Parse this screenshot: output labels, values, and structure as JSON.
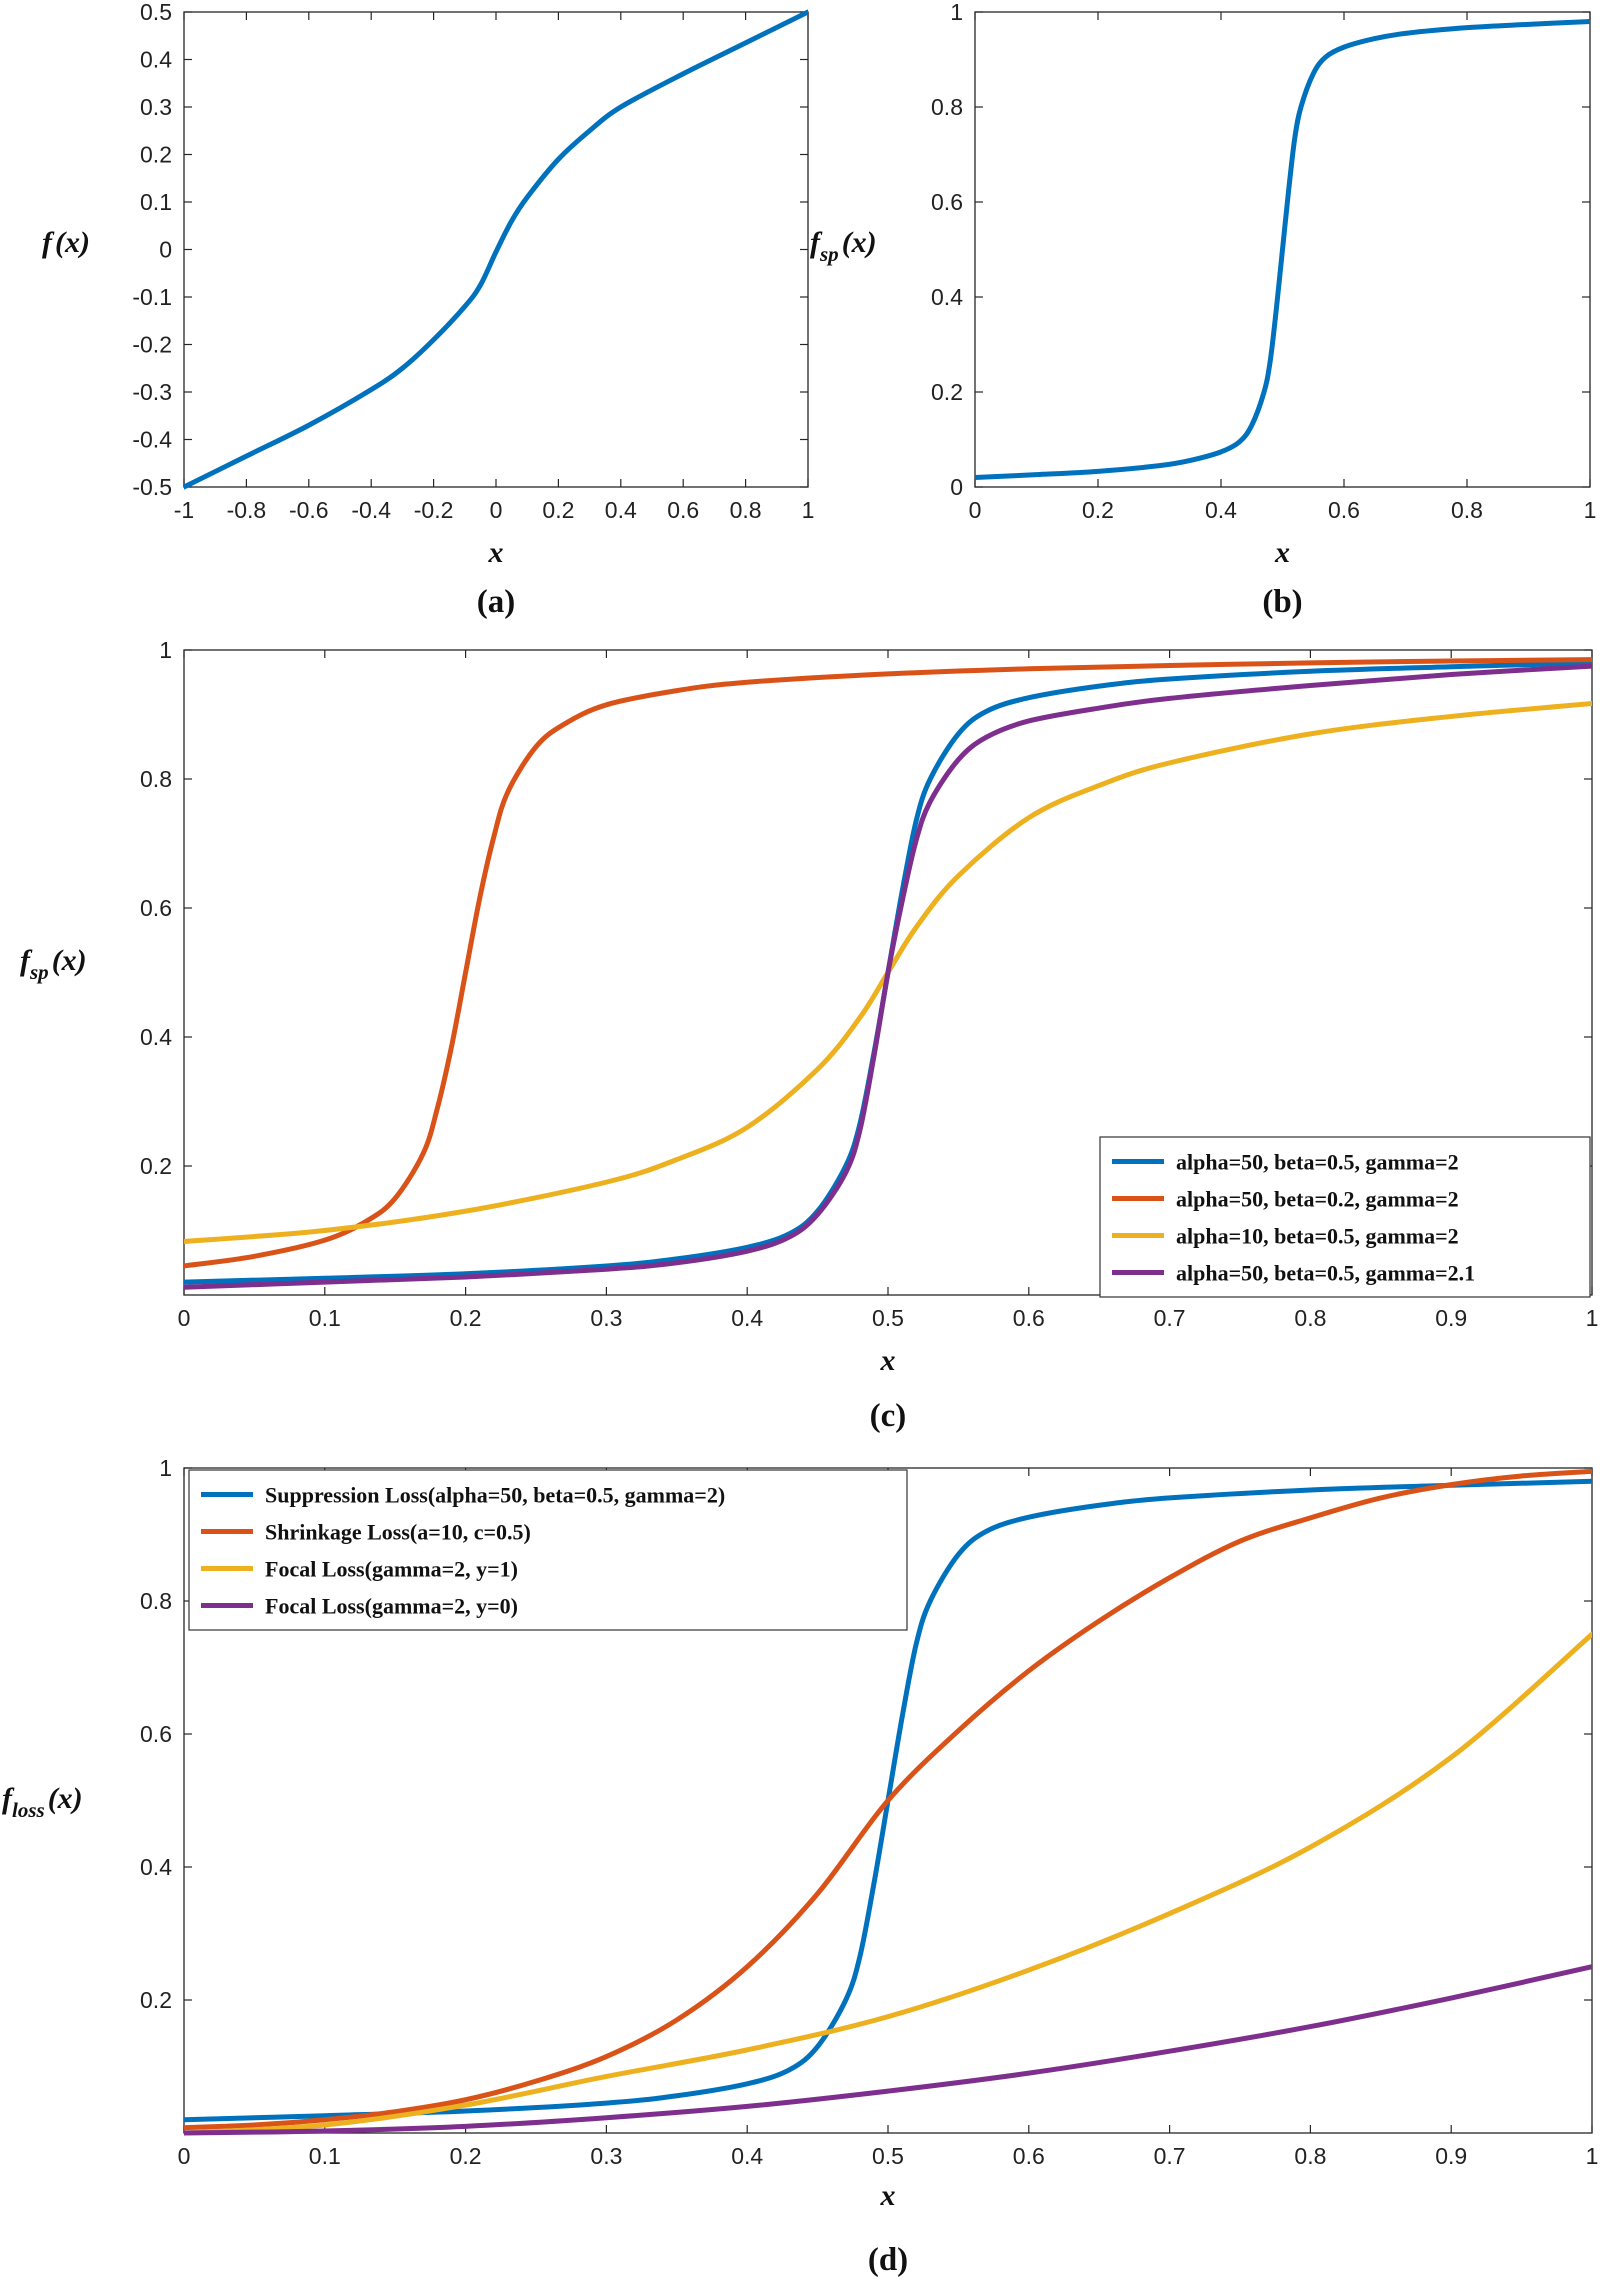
{
  "chart_data": [
    {
      "id": "a",
      "type": "line",
      "caption": "(a)",
      "xlabel": "x",
      "ylabel": {
        "main": "f",
        "sub": "",
        "tail": "(x)"
      },
      "xlim": [
        -1,
        1
      ],
      "ylim": [
        -0.5,
        0.5
      ],
      "xticks": [
        -1,
        -0.8,
        -0.6,
        -0.4,
        -0.2,
        0,
        0.2,
        0.4,
        0.6,
        0.8,
        1
      ],
      "xtick_labels": [
        "-1",
        "-0.8",
        "-0.6",
        "-0.4",
        "-0.2",
        "0",
        "0.2",
        "0.4",
        "0.6",
        "0.8",
        "1"
      ],
      "yticks": [
        -0.5,
        -0.4,
        -0.3,
        -0.2,
        -0.1,
        0,
        0.1,
        0.2,
        0.3,
        0.4,
        0.5
      ],
      "ytick_labels": [
        "-0.5",
        "-0.4",
        "-0.3",
        "-0.2",
        "-0.1",
        "0",
        "0.1",
        "0.2",
        "0.3",
        "0.4",
        "0.5"
      ],
      "series": [
        {
          "name": "f(x)",
          "color": "#0072BD",
          "x": [
            -1,
            -0.8,
            -0.6,
            -0.4,
            -0.3,
            -0.2,
            -0.1,
            -0.05,
            0,
            0.05,
            0.1,
            0.2,
            0.3,
            0.4,
            0.6,
            0.8,
            1
          ],
          "y": [
            -0.5,
            -0.435,
            -0.37,
            -0.295,
            -0.25,
            -0.19,
            -0.12,
            -0.075,
            -0.005,
            0.06,
            0.11,
            0.19,
            0.25,
            0.3,
            0.37,
            0.435,
            0.5
          ]
        }
      ],
      "legend": []
    },
    {
      "id": "b",
      "type": "line",
      "caption": "(b)",
      "xlabel": "x",
      "ylabel": {
        "main": "f",
        "sub": "sp",
        "tail": "(x)"
      },
      "xlim": [
        0,
        1
      ],
      "ylim": [
        0,
        1
      ],
      "xticks": [
        0,
        0.2,
        0.4,
        0.6,
        0.8,
        1
      ],
      "xtick_labels": [
        "0",
        "0.2",
        "0.4",
        "0.6",
        "0.8",
        "1"
      ],
      "yticks": [
        0,
        0.2,
        0.4,
        0.6,
        0.8,
        1
      ],
      "ytick_labels": [
        "0",
        "0.2",
        "0.4",
        "0.6",
        "0.8",
        "1"
      ],
      "series": [
        {
          "name": "f_sp(x)",
          "color": "#0072BD",
          "x": [
            0,
            0.1,
            0.2,
            0.3,
            0.35,
            0.4,
            0.43,
            0.45,
            0.47,
            0.48,
            0.49,
            0.5,
            0.51,
            0.52,
            0.53,
            0.55,
            0.57,
            0.6,
            0.65,
            0.7,
            0.8,
            0.9,
            1
          ],
          "y": [
            0.02,
            0.026,
            0.033,
            0.045,
            0.056,
            0.074,
            0.095,
            0.13,
            0.2,
            0.265,
            0.375,
            0.5,
            0.625,
            0.735,
            0.8,
            0.87,
            0.905,
            0.926,
            0.944,
            0.955,
            0.967,
            0.974,
            0.98
          ]
        }
      ],
      "legend": []
    },
    {
      "id": "c",
      "type": "line",
      "caption": "(c)",
      "xlabel": "x",
      "ylabel": {
        "main": "f",
        "sub": "sp",
        "tail": "(x)"
      },
      "xlim": [
        0,
        1
      ],
      "ylim": [
        0,
        1
      ],
      "xticks": [
        0,
        0.1,
        0.2,
        0.3,
        0.4,
        0.5,
        0.6,
        0.7,
        0.8,
        0.9,
        1
      ],
      "xtick_labels": [
        "0",
        "0.1",
        "0.2",
        "0.3",
        "0.4",
        "0.5",
        "0.6",
        "0.7",
        "0.8",
        "0.9",
        "1"
      ],
      "yticks": [
        0.2,
        0.4,
        0.6,
        0.8,
        1
      ],
      "ytick_labels": [
        "0.2",
        "0.4",
        "0.6",
        "0.8",
        "1"
      ],
      "series": [
        {
          "name": "alpha=50, beta=0.5, gamma=2",
          "color": "#0072BD",
          "x": [
            0,
            0.1,
            0.2,
            0.3,
            0.35,
            0.4,
            0.43,
            0.45,
            0.47,
            0.48,
            0.49,
            0.5,
            0.51,
            0.52,
            0.53,
            0.55,
            0.57,
            0.6,
            0.65,
            0.7,
            0.8,
            0.9,
            1
          ],
          "y": [
            0.02,
            0.026,
            0.033,
            0.045,
            0.056,
            0.074,
            0.095,
            0.13,
            0.2,
            0.265,
            0.375,
            0.5,
            0.625,
            0.735,
            0.8,
            0.87,
            0.905,
            0.926,
            0.944,
            0.955,
            0.967,
            0.974,
            0.98
          ]
        },
        {
          "name": "alpha=50, beta=0.2, gamma=2",
          "color": "#D95319",
          "x": [
            0,
            0.05,
            0.1,
            0.13,
            0.15,
            0.17,
            0.18,
            0.19,
            0.2,
            0.21,
            0.22,
            0.23,
            0.25,
            0.27,
            0.3,
            0.35,
            0.4,
            0.5,
            0.6,
            0.7,
            0.8,
            0.9,
            1
          ],
          "y": [
            0.045,
            0.06,
            0.085,
            0.115,
            0.15,
            0.22,
            0.29,
            0.385,
            0.5,
            0.615,
            0.71,
            0.78,
            0.85,
            0.885,
            0.915,
            0.937,
            0.95,
            0.963,
            0.971,
            0.976,
            0.98,
            0.983,
            0.985
          ]
        },
        {
          "name": "alpha=10, beta=0.5, gamma=2",
          "color": "#EDB120",
          "x": [
            0,
            0.1,
            0.2,
            0.3,
            0.35,
            0.4,
            0.45,
            0.48,
            0.5,
            0.52,
            0.55,
            0.6,
            0.65,
            0.7,
            0.8,
            0.9,
            1
          ],
          "y": [
            0.083,
            0.1,
            0.13,
            0.175,
            0.21,
            0.26,
            0.35,
            0.43,
            0.5,
            0.57,
            0.65,
            0.74,
            0.79,
            0.825,
            0.87,
            0.897,
            0.917
          ]
        },
        {
          "name": "alpha=50, beta=0.5, gamma=2.1",
          "color": "#7E2F8E",
          "x": [
            0,
            0.1,
            0.2,
            0.3,
            0.35,
            0.4,
            0.43,
            0.45,
            0.47,
            0.48,
            0.49,
            0.5,
            0.51,
            0.52,
            0.53,
            0.55,
            0.57,
            0.6,
            0.65,
            0.7,
            0.8,
            0.9,
            1
          ],
          "y": [
            0.012,
            0.02,
            0.028,
            0.04,
            0.05,
            0.068,
            0.09,
            0.125,
            0.19,
            0.255,
            0.37,
            0.5,
            0.61,
            0.705,
            0.765,
            0.83,
            0.865,
            0.89,
            0.91,
            0.925,
            0.945,
            0.962,
            0.975
          ]
        }
      ],
      "legend": [
        "alpha=50, beta=0.5, gamma=2",
        "alpha=50, beta=0.2, gamma=2",
        "alpha=10, beta=0.5, gamma=2",
        "alpha=50, beta=0.5, gamma=2.1"
      ],
      "legend_position": "bottom-right"
    },
    {
      "id": "d",
      "type": "line",
      "caption": "(d)",
      "xlabel": "x",
      "ylabel": {
        "main": "f",
        "sub": "loss",
        "tail": "(x)"
      },
      "xlim": [
        0,
        1
      ],
      "ylim": [
        0,
        1
      ],
      "xticks": [
        0,
        0.1,
        0.2,
        0.3,
        0.4,
        0.5,
        0.6,
        0.7,
        0.8,
        0.9,
        1
      ],
      "xtick_labels": [
        "0",
        "0.1",
        "0.2",
        "0.3",
        "0.4",
        "0.5",
        "0.6",
        "0.7",
        "0.8",
        "0.9",
        "1"
      ],
      "yticks": [
        0.2,
        0.4,
        0.6,
        0.8,
        1
      ],
      "ytick_labels": [
        "0.2",
        "0.4",
        "0.6",
        "0.8",
        "1"
      ],
      "series": [
        {
          "name": "Suppression Loss(alpha=50, beta=0.5, gamma=2)",
          "color": "#0072BD",
          "x": [
            0,
            0.1,
            0.2,
            0.3,
            0.35,
            0.4,
            0.43,
            0.45,
            0.47,
            0.48,
            0.49,
            0.5,
            0.51,
            0.52,
            0.53,
            0.55,
            0.57,
            0.6,
            0.65,
            0.7,
            0.8,
            0.9,
            1
          ],
          "y": [
            0.02,
            0.026,
            0.033,
            0.045,
            0.056,
            0.074,
            0.095,
            0.13,
            0.2,
            0.265,
            0.375,
            0.5,
            0.625,
            0.735,
            0.8,
            0.87,
            0.905,
            0.926,
            0.944,
            0.955,
            0.967,
            0.974,
            0.98
          ]
        },
        {
          "name": "Shrinkage Loss(a=10, c=0.5)",
          "color": "#D95319",
          "x": [
            0,
            0.05,
            0.1,
            0.15,
            0.2,
            0.25,
            0.3,
            0.35,
            0.4,
            0.45,
            0.5,
            0.55,
            0.6,
            0.65,
            0.7,
            0.75,
            0.8,
            0.85,
            0.9,
            0.95,
            1
          ],
          "y": [
            0.008,
            0.012,
            0.02,
            0.032,
            0.05,
            0.078,
            0.115,
            0.17,
            0.25,
            0.36,
            0.5,
            0.605,
            0.695,
            0.77,
            0.835,
            0.89,
            0.925,
            0.955,
            0.975,
            0.988,
            0.995
          ]
        },
        {
          "name": "Focal Loss(gamma=2, y=1)",
          "color": "#EDB120",
          "x": [
            0,
            0.1,
            0.2,
            0.3,
            0.4,
            0.5,
            0.6,
            0.7,
            0.8,
            0.9,
            1
          ],
          "y": [
            0,
            0.012,
            0.042,
            0.085,
            0.125,
            0.175,
            0.245,
            0.33,
            0.43,
            0.565,
            0.75
          ]
        },
        {
          "name": "Focal Loss(gamma=2, y=0)",
          "color": "#7E2F8E",
          "x": [
            0,
            0.1,
            0.2,
            0.3,
            0.4,
            0.5,
            0.6,
            0.7,
            0.8,
            0.9,
            1
          ],
          "y": [
            0,
            0.003,
            0.01,
            0.023,
            0.04,
            0.063,
            0.09,
            0.123,
            0.16,
            0.203,
            0.25
          ]
        }
      ],
      "legend": [
        "Suppression Loss(alpha=50, beta=0.5, gamma=2)",
        "Shrinkage Loss(a=10, c=0.5)",
        "Focal Loss(gamma=2, y=1)",
        "Focal Loss(gamma=2, y=0)"
      ],
      "legend_position": "top-left"
    }
  ]
}
